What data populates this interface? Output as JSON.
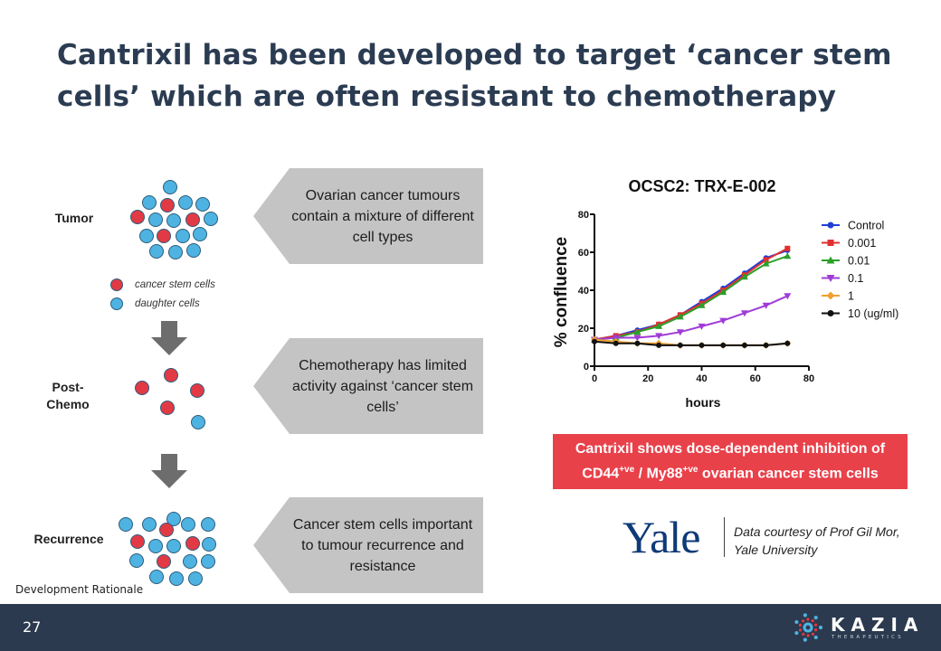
{
  "slide": {
    "title": "Cantrixil has been developed to target ‘cancer stem cells’ which are often resistant to chemotherapy",
    "page_number": "27",
    "section_label": "Development Rationale"
  },
  "diagram": {
    "rows": [
      {
        "label_line1": "Tumor",
        "label_line2": ""
      },
      {
        "label_line1": "Post-",
        "label_line2": "Chemo"
      },
      {
        "label_line1": "Recurrence",
        "label_line2": ""
      }
    ],
    "legend": {
      "stem": "cancer stem cells",
      "daughter": "daughter cells"
    },
    "colors": {
      "stem": "#e23a45",
      "daughter": "#4fb3e2",
      "outline": "#2c5d7c",
      "arrow": "#6d6d6d"
    },
    "callouts": [
      "Ovarian cancer tumours contain a mixture of different cell types",
      "Chemotherapy has limited activity against ‘cancer stem cells’",
      "Cancer stem cells important to tumour recurrence and resistance"
    ]
  },
  "chart_data": {
    "type": "line",
    "title": "OCSC2: TRX-E-002",
    "xlabel": "hours",
    "ylabel": "% confluence",
    "xlim": [
      0,
      80
    ],
    "ylim": [
      0,
      80
    ],
    "xticks": [
      0,
      20,
      40,
      60,
      80
    ],
    "yticks": [
      0,
      20,
      40,
      60,
      80
    ],
    "legend_position": "right",
    "series": [
      {
        "name": "Control",
        "color": "#1f3fd6",
        "marker": "circle",
        "x": [
          0,
          8,
          16,
          24,
          32,
          40,
          48,
          56,
          64,
          72
        ],
        "y": [
          14,
          16,
          19,
          22,
          27,
          34,
          41,
          49,
          57,
          61
        ]
      },
      {
        "name": "0.001",
        "color": "#e03030",
        "marker": "square",
        "x": [
          0,
          8,
          16,
          24,
          32,
          40,
          48,
          56,
          64,
          72
        ],
        "y": [
          14,
          16,
          18,
          22,
          27,
          33,
          40,
          48,
          56,
          62
        ]
      },
      {
        "name": "0.01",
        "color": "#2aa02a",
        "marker": "triangle",
        "x": [
          0,
          8,
          16,
          24,
          32,
          40,
          48,
          56,
          64,
          72
        ],
        "y": [
          14,
          15,
          18,
          21,
          26,
          32,
          39,
          47,
          54,
          58
        ]
      },
      {
        "name": "0.1",
        "color": "#a03bd6",
        "marker": "triangle-down",
        "x": [
          0,
          8,
          16,
          24,
          32,
          40,
          48,
          56,
          64,
          72
        ],
        "y": [
          14,
          15,
          15,
          16,
          18,
          21,
          24,
          28,
          32,
          37
        ]
      },
      {
        "name": "1",
        "color": "#f0a030",
        "marker": "diamond",
        "x": [
          0,
          8,
          16,
          24,
          32,
          40,
          48,
          56,
          64,
          72
        ],
        "y": [
          14,
          13,
          12,
          12,
          11,
          11,
          11,
          11,
          11,
          12
        ]
      },
      {
        "name": "10 (ug/ml)",
        "color": "#111111",
        "marker": "circle",
        "x": [
          0,
          8,
          16,
          24,
          32,
          40,
          48,
          56,
          64,
          72
        ],
        "y": [
          13,
          12,
          12,
          11,
          11,
          11,
          11,
          11,
          11,
          12
        ]
      }
    ]
  },
  "banner": {
    "line1": "Cantrixil shows dose-dependent inhibition of",
    "cd44": "CD44",
    "cd44_sup": "+ve",
    "sep": " / ",
    "my88": "My88",
    "my88_sup": "+ve",
    "line2_rest": " ovarian cancer stem cells"
  },
  "credit": {
    "logo_text": "Yale",
    "line1": "Data courtesy of Prof Gil Mor,",
    "line2": "Yale University"
  },
  "brand": {
    "name": "KAZIA",
    "sub": "THERAPEUTICS",
    "footer_color": "#2b3a4f"
  }
}
